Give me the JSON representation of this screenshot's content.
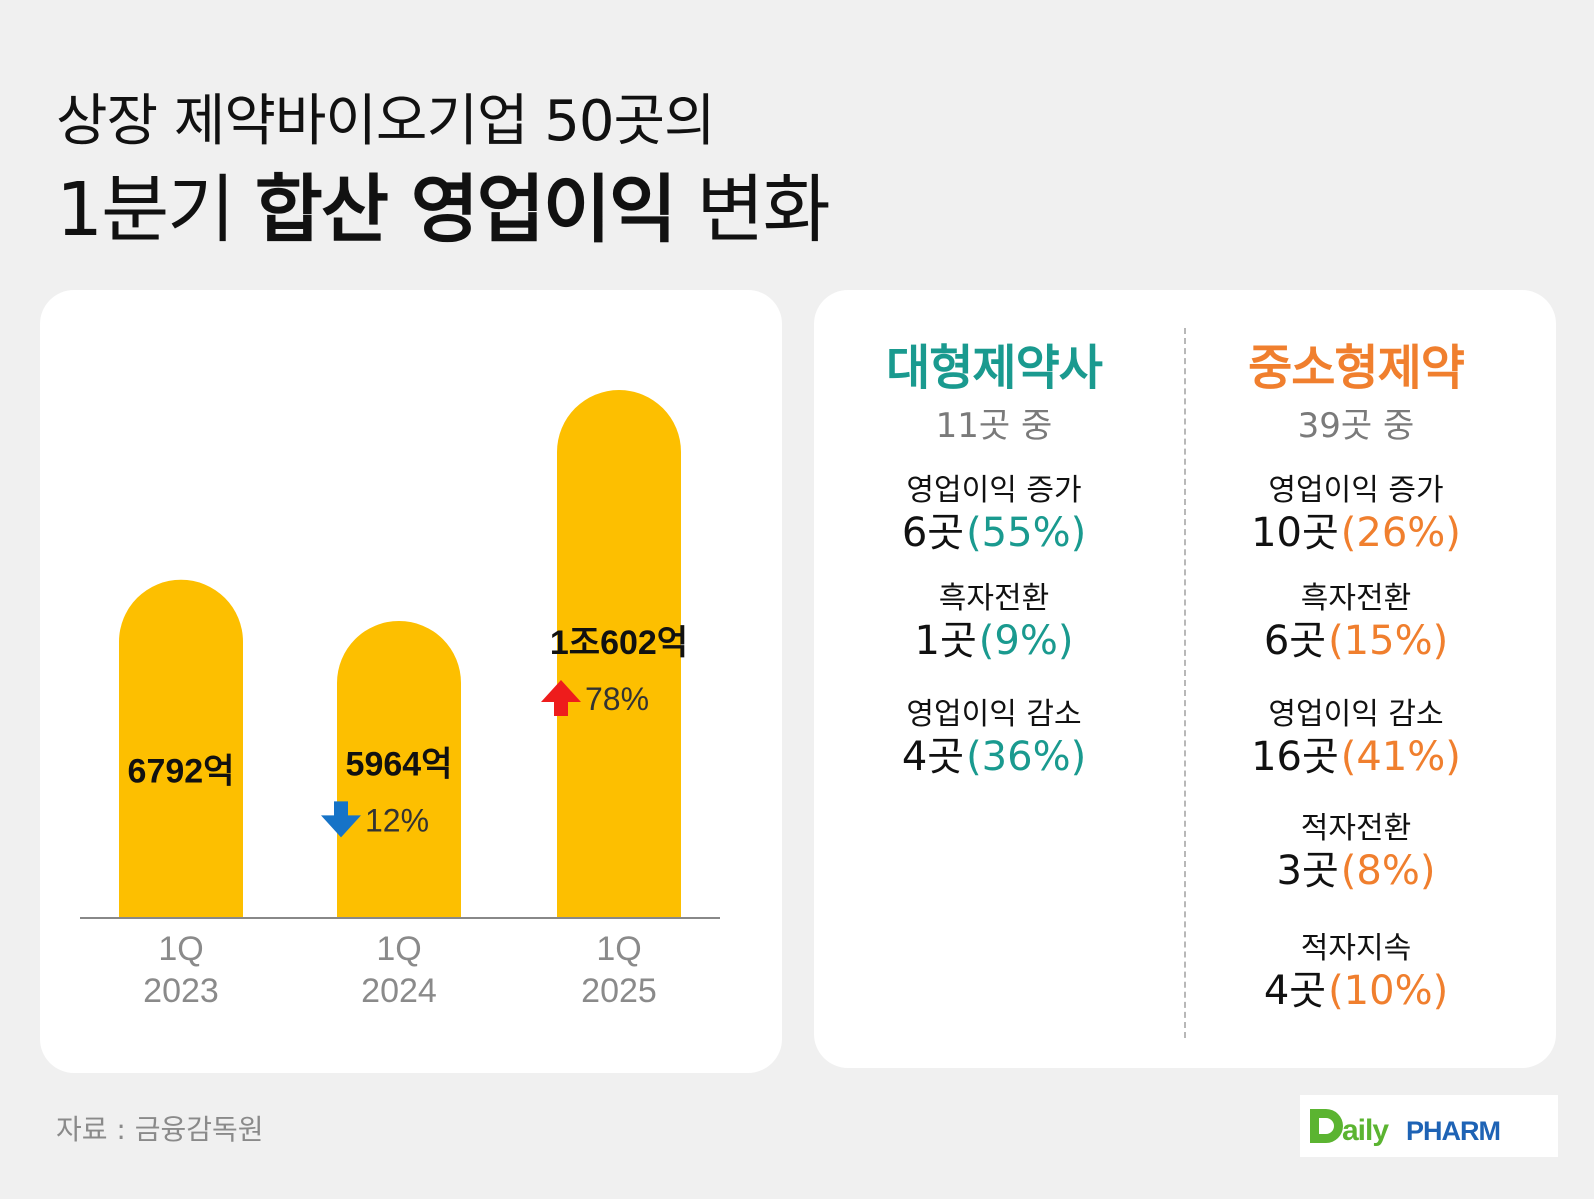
{
  "title": {
    "line1": "상장 제약바이오기업 50곳의",
    "line2_prefix": "1분기 ",
    "line2_bold": "합산 영업이익",
    "line2_suffix": " 변화"
  },
  "colors": {
    "bar": "#FDBF00",
    "teal": "#1A9A8F",
    "orange": "#F07F2E",
    "up_arrow": "#EE1C1C",
    "down_arrow": "#1673C7",
    "axis_text": "#8a8a8a"
  },
  "chart_data": {
    "type": "bar",
    "categories": [
      [
        "1Q",
        "2023"
      ],
      [
        "1Q",
        "2024"
      ],
      [
        "1Q",
        "2025"
      ]
    ],
    "values": [
      6792,
      5964,
      10602
    ],
    "value_unit": "억 원",
    "data_labels": [
      "6792억",
      "5964억",
      "1조602억"
    ],
    "changes": [
      null,
      {
        "direction": "down",
        "label": "12%"
      },
      {
        "direction": "up",
        "label": "78%"
      }
    ],
    "ylim": [
      0,
      10602
    ],
    "grid": false
  },
  "groups": [
    {
      "title": "대형제약사",
      "subtitle": "11곳 중",
      "color_key": "teal",
      "stats": [
        {
          "label": "영업이익 증가",
          "count": "6곳",
          "pct": "(55%)"
        },
        {
          "label": "흑자전환",
          "count": "1곳",
          "pct": "(9%)"
        },
        {
          "label": "영업이익 감소",
          "count": "4곳",
          "pct": "(36%)"
        }
      ]
    },
    {
      "title": "중소형제약",
      "subtitle": "39곳 중",
      "color_key": "orange",
      "stats": [
        {
          "label": "영업이익 증가",
          "count": "10곳",
          "pct": "(26%)"
        },
        {
          "label": "흑자전환",
          "count": "6곳",
          "pct": "(15%)"
        },
        {
          "label": "영업이익 감소",
          "count": "16곳",
          "pct": "(41%)"
        },
        {
          "label": "적자전환",
          "count": "3곳",
          "pct": "(8%)"
        },
        {
          "label": "적자지속",
          "count": "4곳",
          "pct": "(10%)"
        }
      ]
    }
  ],
  "source": "자료 : 금융감독원",
  "logo": {
    "text": "DailyPHARM"
  }
}
